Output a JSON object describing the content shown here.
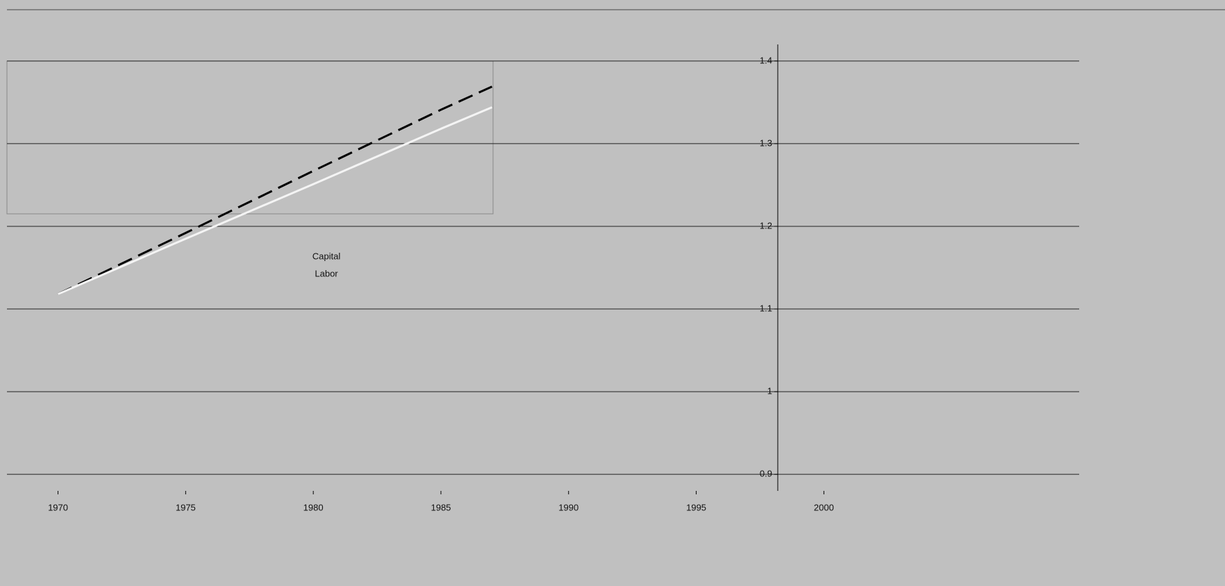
{
  "chart_data": {
    "type": "line",
    "x": [
      1970,
      1975,
      1980,
      1985,
      1987
    ],
    "series": [
      {
        "name": "Capital",
        "color": "#000000",
        "dash": true,
        "values": [
          1.118,
          1.192,
          1.267,
          1.341,
          1.369
        ]
      },
      {
        "name": "Labor",
        "color": "#f4f4f4",
        "dash": false,
        "values": [
          1.118,
          1.185,
          1.251,
          1.318,
          1.344
        ]
      }
    ],
    "xlim": [
      1968,
      2010
    ],
    "xticks": [
      1970,
      1975,
      1980,
      1985,
      1990,
      1995,
      2000
    ],
    "ylim": [
      0.88,
      1.42
    ],
    "yticks": [
      0.9,
      1.0,
      1.1,
      1.2,
      1.3,
      1.4
    ],
    "grid": true
  }
}
